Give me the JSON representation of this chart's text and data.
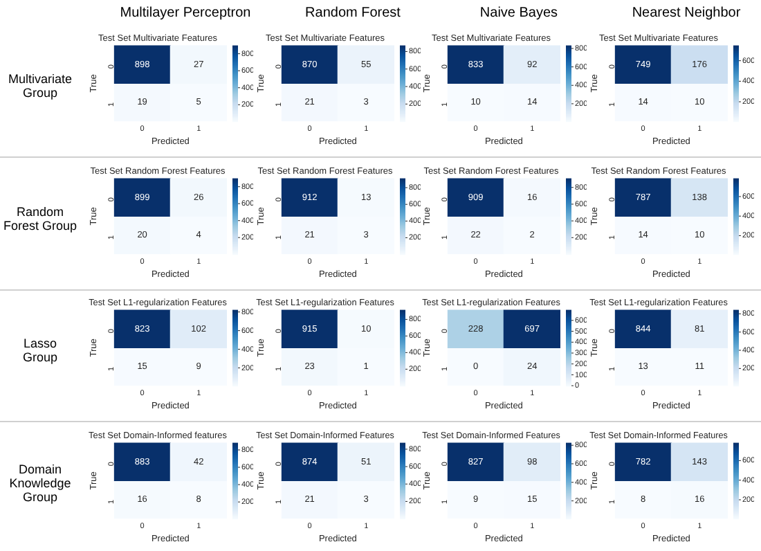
{
  "chart_data": [
    {
      "type": "other",
      "annotations": [
        "Multilayer Perceptron",
        "Random Forest",
        "Naive Bayes",
        "Nearest Neighbor",
        "Multivariate\nGroup",
        "Random\nForest Group",
        "Lasso\nGroup",
        "Domain\nKnowledge\nGroup"
      ]
    },
    {
      "type": "heatmap",
      "title": "Test Set Multivariate Features",
      "xlabel": "Predicted",
      "ylabel": "True",
      "categories": [
        "0",
        "1"
      ],
      "y_categories": [
        "0",
        "1"
      ],
      "cells": [
        [
          898,
          27
        ],
        [
          19,
          5
        ]
      ],
      "clim": [
        5,
        898
      ],
      "cticks": [
        200,
        400,
        600,
        800
      ],
      "data_labels": true
    },
    {
      "type": "heatmap",
      "title": "Test Set Multivariate Features",
      "xlabel": "Predicted",
      "ylabel": "True",
      "categories": [
        "0",
        "1"
      ],
      "y_categories": [
        "0",
        "1"
      ],
      "cells": [
        [
          870,
          55
        ],
        [
          21,
          3
        ]
      ],
      "clim": [
        3,
        870
      ],
      "cticks": [
        200,
        400,
        600,
        800
      ],
      "data_labels": true
    },
    {
      "type": "heatmap",
      "title": "Test Set Multivariate Features",
      "xlabel": "Predicted",
      "ylabel": "True",
      "categories": [
        "0",
        "1"
      ],
      "y_categories": [
        "0",
        "1"
      ],
      "cells": [
        [
          833,
          92
        ],
        [
          10,
          14
        ]
      ],
      "clim": [
        10,
        833
      ],
      "cticks": [
        200,
        400,
        600,
        800
      ],
      "data_labels": true
    },
    {
      "type": "heatmap",
      "title": "Test Set Multivariate Features",
      "xlabel": "Predicted",
      "ylabel": "True",
      "categories": [
        "0",
        "1"
      ],
      "y_categories": [
        "0",
        "1"
      ],
      "cells": [
        [
          749,
          176
        ],
        [
          14,
          10
        ]
      ],
      "clim": [
        10,
        749
      ],
      "cticks": [
        200,
        400,
        600
      ],
      "data_labels": true
    },
    {
      "type": "heatmap",
      "title": "Test Set Random Forest Features",
      "xlabel": "Predicted",
      "ylabel": "True",
      "categories": [
        "0",
        "1"
      ],
      "y_categories": [
        "0",
        "1"
      ],
      "cells": [
        [
          899,
          26
        ],
        [
          20,
          4
        ]
      ],
      "clim": [
        4,
        899
      ],
      "cticks": [
        200,
        400,
        600,
        800
      ],
      "data_labels": true
    },
    {
      "type": "heatmap",
      "title": "Test Set Random Forest Features",
      "xlabel": "Predicted",
      "ylabel": "True",
      "categories": [
        "0",
        "1"
      ],
      "y_categories": [
        "0",
        "1"
      ],
      "cells": [
        [
          912,
          13
        ],
        [
          21,
          3
        ]
      ],
      "clim": [
        3,
        912
      ],
      "cticks": [
        200,
        400,
        600,
        800
      ],
      "data_labels": true
    },
    {
      "type": "heatmap",
      "title": "Test Set Random Forest Features",
      "xlabel": "Predicted",
      "ylabel": "True",
      "categories": [
        "0",
        "1"
      ],
      "y_categories": [
        "0",
        "1"
      ],
      "cells": [
        [
          909,
          16
        ],
        [
          22,
          2
        ]
      ],
      "clim": [
        2,
        909
      ],
      "cticks": [
        200,
        400,
        600,
        800
      ],
      "data_labels": true
    },
    {
      "type": "heatmap",
      "title": "Test Set Random Forest Features",
      "xlabel": "Predicted",
      "ylabel": "True",
      "categories": [
        "0",
        "1"
      ],
      "y_categories": [
        "0",
        "1"
      ],
      "cells": [
        [
          787,
          138
        ],
        [
          14,
          10
        ]
      ],
      "clim": [
        10,
        787
      ],
      "cticks": [
        200,
        400,
        600
      ],
      "data_labels": true
    },
    {
      "type": "heatmap",
      "title": "Test Set L1-regularization Features",
      "xlabel": "Predicted",
      "ylabel": "True",
      "categories": [
        "0",
        "1"
      ],
      "y_categories": [
        "0",
        "1"
      ],
      "cells": [
        [
          823,
          102
        ],
        [
          15,
          9
        ]
      ],
      "clim": [
        9,
        823
      ],
      "cticks": [
        200,
        400,
        600,
        800
      ],
      "data_labels": true
    },
    {
      "type": "heatmap",
      "title": "Test Set L1-regularization Features",
      "xlabel": "Predicted",
      "ylabel": "True",
      "categories": [
        "0",
        "1"
      ],
      "y_categories": [
        "0",
        "1"
      ],
      "cells": [
        [
          915,
          10
        ],
        [
          23,
          1
        ]
      ],
      "clim": [
        1,
        915
      ],
      "cticks": [
        200,
        400,
        600,
        800
      ],
      "data_labels": true
    },
    {
      "type": "heatmap",
      "title": "Test Set L1-regularization Features",
      "xlabel": "Predicted",
      "ylabel": "True",
      "categories": [
        "0",
        "1"
      ],
      "y_categories": [
        "0",
        "1"
      ],
      "cells": [
        [
          228,
          697
        ],
        [
          0,
          24
        ]
      ],
      "clim": [
        0,
        697
      ],
      "cticks": [
        0,
        100,
        200,
        300,
        400,
        500,
        600
      ],
      "data_labels": true
    },
    {
      "type": "heatmap",
      "title": "Test Set L1-regularization Features",
      "xlabel": "Predicted",
      "ylabel": "True",
      "categories": [
        "0",
        "1"
      ],
      "y_categories": [
        "0",
        "1"
      ],
      "cells": [
        [
          844,
          81
        ],
        [
          13,
          11
        ]
      ],
      "clim": [
        11,
        844
      ],
      "cticks": [
        200,
        400,
        600,
        800
      ],
      "data_labels": true
    },
    {
      "type": "heatmap",
      "title": "Test Set Domain-Informed features",
      "xlabel": "Predicted",
      "ylabel": "True",
      "categories": [
        "0",
        "1"
      ],
      "y_categories": [
        "0",
        "1"
      ],
      "cells": [
        [
          883,
          42
        ],
        [
          16,
          8
        ]
      ],
      "clim": [
        8,
        883
      ],
      "cticks": [
        200,
        400,
        600,
        800
      ],
      "data_labels": true
    },
    {
      "type": "heatmap",
      "title": "Test Set Domain-Informed Features",
      "xlabel": "Predicted",
      "ylabel": "True",
      "categories": [
        "0",
        "1"
      ],
      "y_categories": [
        "0",
        "1"
      ],
      "cells": [
        [
          874,
          51
        ],
        [
          21,
          3
        ]
      ],
      "clim": [
        3,
        874
      ],
      "cticks": [
        200,
        400,
        600,
        800
      ],
      "data_labels": true
    },
    {
      "type": "heatmap",
      "title": "Test Set Domain-Informed Features",
      "xlabel": "Predicted",
      "ylabel": "True",
      "categories": [
        "0",
        "1"
      ],
      "y_categories": [
        "0",
        "1"
      ],
      "cells": [
        [
          827,
          98
        ],
        [
          9,
          15
        ]
      ],
      "clim": [
        9,
        827
      ],
      "cticks": [
        200,
        400,
        600,
        800
      ],
      "data_labels": true
    },
    {
      "type": "heatmap",
      "title": "Test Set Domain-Informed Features",
      "xlabel": "Predicted",
      "ylabel": "True",
      "categories": [
        "0",
        "1"
      ],
      "y_categories": [
        "0",
        "1"
      ],
      "cells": [
        [
          782,
          143
        ],
        [
          8,
          16
        ]
      ],
      "clim": [
        8,
        782
      ],
      "cticks": [
        200,
        400,
        600
      ],
      "data_labels": true
    }
  ]
}
